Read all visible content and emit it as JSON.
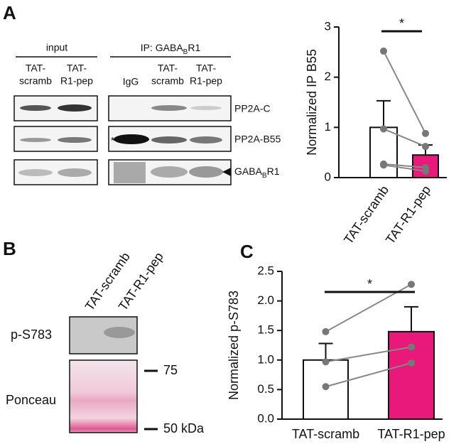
{
  "panels": {
    "a": {
      "letter": "A",
      "input_label": "input",
      "ip_label": {
        "text": "IP: GABA",
        "sub": "B",
        "tail": "R1"
      },
      "input_lanes": [
        [
          "TAT-",
          "scramb"
        ],
        [
          "TAT-",
          "R1-pep"
        ]
      ],
      "ip_lanes": [
        [
          "IgG"
        ],
        [
          "TAT-",
          "scramb"
        ],
        [
          "TAT-",
          "R1-pep"
        ]
      ],
      "bands": [
        "PP2A-C",
        "PP2A-B55",
        {
          "text": "GABA",
          "sub": "B",
          "tail": "R1"
        }
      ],
      "asterisk": "*"
    },
    "b": {
      "letter": "B",
      "lanes": [
        "TAT-scramb",
        "TAT-R1-pep"
      ],
      "rows": [
        "p-S783",
        "Ponceau"
      ],
      "markers": [
        "75",
        "50 kDa"
      ]
    },
    "c": {
      "letter": "C"
    }
  },
  "chart_data": [
    {
      "type": "bar",
      "y_label": "Normalized IP B55",
      "categories": [
        "TAT-scramb",
        "TAT-R1-pep"
      ],
      "values": [
        1.0,
        0.45
      ],
      "errors": [
        0.53,
        0.2
      ],
      "colors": [
        "#ffffff",
        "#e8197a"
      ],
      "paired_points": [
        [
          2.52,
          0.88
        ],
        [
          0.97,
          0.62
        ],
        [
          0.27,
          0.2
        ],
        [
          0.25,
          0.13
        ]
      ],
      "significance": "*",
      "ylim": [
        0,
        3
      ],
      "yticks": [
        0,
        1,
        2,
        3
      ]
    },
    {
      "type": "bar",
      "y_label": "Normalized p-S783",
      "categories": [
        "TAT-scramb",
        "TAT-R1-pep"
      ],
      "values": [
        1.0,
        1.48
      ],
      "errors": [
        0.28,
        0.42
      ],
      "colors": [
        "#ffffff",
        "#e8197a"
      ],
      "paired_points": [
        [
          1.48,
          2.28
        ],
        [
          0.97,
          1.22
        ],
        [
          0.55,
          0.95
        ]
      ],
      "significance": "*",
      "ylim": [
        0,
        2.5
      ],
      "yticks": [
        {
          "value": 0,
          "label": "0.0"
        },
        0.5,
        {
          "value": 1,
          "label": "1.0"
        },
        1.5,
        {
          "value": 2,
          "label": "2.0"
        },
        2.5
      ]
    }
  ]
}
